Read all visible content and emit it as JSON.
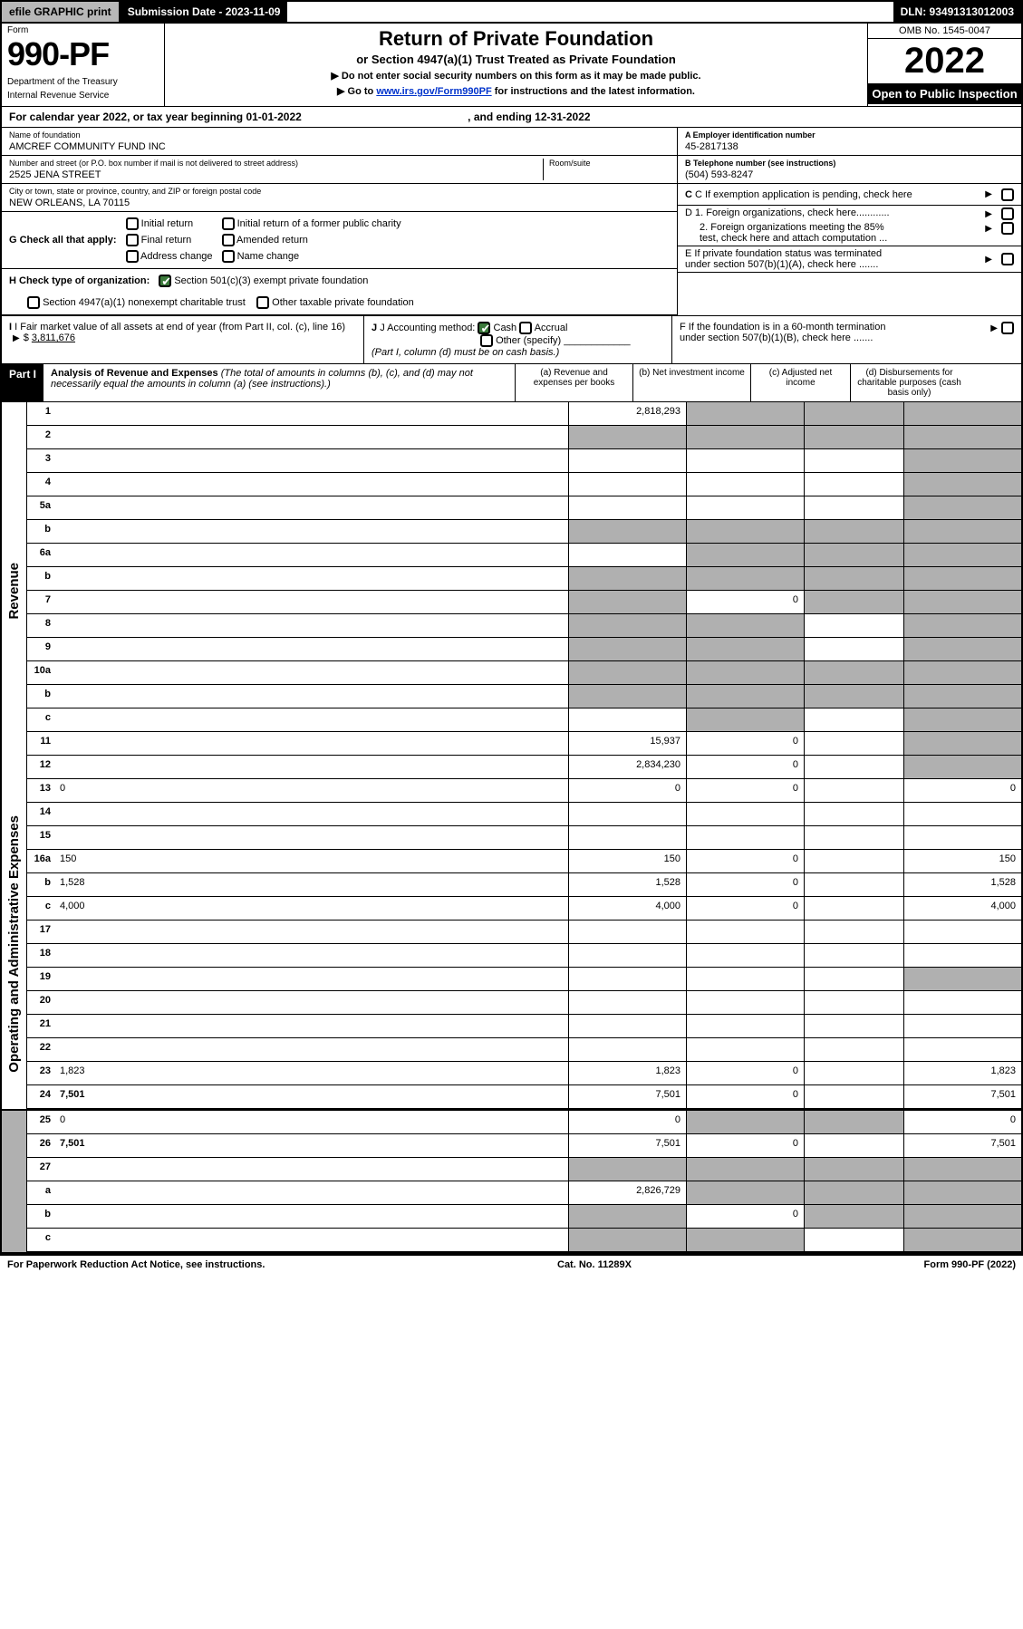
{
  "topbar": {
    "efile_label": "efile GRAPHIC print",
    "submission_label": "Submission Date - 2023-11-09",
    "dln_label": "DLN: 93491313012003"
  },
  "header": {
    "form_label": "Form",
    "form_number": "990-PF",
    "dept1": "Department of the Treasury",
    "dept2": "Internal Revenue Service",
    "title": "Return of Private Foundation",
    "subtitle": "or Section 4947(a)(1) Trust Treated as Private Foundation",
    "note1": "▶ Do not enter social security numbers on this form as it may be made public.",
    "note2": "▶ Go to ",
    "note2_link": "www.irs.gov/Form990PF",
    "note2_suffix": " for instructions and the latest information.",
    "omb": "OMB No. 1545-0047",
    "year": "2022",
    "open_public": "Open to Public Inspection"
  },
  "cal_year": {
    "text": "For calendar year 2022, or tax year beginning 01-01-2022",
    "ending": ", and ending 12-31-2022"
  },
  "id": {
    "name_lbl": "Name of foundation",
    "name_val": "AMCREF COMMUNITY FUND INC",
    "addr_lbl": "Number and street (or P.O. box number if mail is not delivered to street address)",
    "addr_val": "2525 JENA STREET",
    "room_lbl": "Room/suite",
    "city_lbl": "City or town, state or province, country, and ZIP or foreign postal code",
    "city_val": "NEW ORLEANS, LA  70115",
    "ein_lbl": "A Employer identification number",
    "ein_val": "45-2817138",
    "phone_lbl": "B Telephone number (see instructions)",
    "phone_val": "(504) 593-8247",
    "c_lbl": "C If exemption application is pending, check here"
  },
  "g": {
    "label": "G Check all that apply:",
    "o1": "Initial return",
    "o2": "Final return",
    "o3": "Address change",
    "o4": "Initial return of a former public charity",
    "o5": "Amended return",
    "o6": "Name change"
  },
  "h": {
    "label": "H Check type of organization:",
    "o1": "Section 501(c)(3) exempt private foundation",
    "o2": "Section 4947(a)(1) nonexempt charitable trust",
    "o3": "Other taxable private foundation"
  },
  "i": {
    "label": "I Fair market value of all assets at end of year (from Part II, col. (c), line 16)",
    "val": "3,811,676"
  },
  "j": {
    "label": "J Accounting method:",
    "o1": "Cash",
    "o2": "Accrual",
    "o3": "Other (specify)",
    "note": "(Part I, column (d) must be on cash basis.)"
  },
  "d": {
    "d1": "D 1. Foreign organizations, check here............",
    "d2a": "2. Foreign organizations meeting the 85%",
    "d2b": "test, check here and attach computation ..."
  },
  "e": {
    "e1": "E If private foundation status was terminated",
    "e2": "under section 507(b)(1)(A), check here ......."
  },
  "f": {
    "f1": "F If the foundation is in a 60-month termination",
    "f2": "under section 507(b)(1)(B), check here ......."
  },
  "part1": {
    "label": "Part I",
    "title": "Analysis of Revenue and Expenses",
    "title_note": " (The total of amounts in columns (b), (c), and (d) may not necessarily equal the amounts in column (a) (see instructions).)",
    "col_a": "(a) Revenue and expenses per books",
    "col_b": "(b) Net investment income",
    "col_c": "(c) Adjusted net income",
    "col_d": "(d) Disbursements for charitable purposes (cash basis only)"
  },
  "vtabs": {
    "rev": "Revenue",
    "exp": "Operating and Administrative Expenses"
  },
  "rows": [
    {
      "n": "1",
      "d": "",
      "a": "2,818,293",
      "b": "",
      "c": "",
      "shade_b": true,
      "shade_c": true,
      "shade_d": true
    },
    {
      "n": "2",
      "d": "",
      "a": "",
      "b": "",
      "c": "",
      "shade_a": true,
      "shade_b": true,
      "shade_c": true,
      "shade_d": true
    },
    {
      "n": "3",
      "d": "",
      "a": "",
      "b": "",
      "c": "",
      "shade_d": true
    },
    {
      "n": "4",
      "d": "",
      "a": "",
      "b": "",
      "c": "",
      "shade_d": true
    },
    {
      "n": "5a",
      "d": "",
      "a": "",
      "b": "",
      "c": "",
      "shade_d": true
    },
    {
      "n": "b",
      "d": "",
      "a": "",
      "b": "",
      "c": "",
      "shade_a": true,
      "shade_b": true,
      "shade_c": true,
      "shade_d": true
    },
    {
      "n": "6a",
      "d": "",
      "a": "",
      "b": "",
      "c": "",
      "shade_b": true,
      "shade_c": true,
      "shade_d": true
    },
    {
      "n": "b",
      "d": "",
      "a": "",
      "b": "",
      "c": "",
      "shade_a": true,
      "shade_b": true,
      "shade_c": true,
      "shade_d": true
    },
    {
      "n": "7",
      "d": "",
      "a": "",
      "b": "0",
      "c": "",
      "shade_a": true,
      "shade_c": true,
      "shade_d": true
    },
    {
      "n": "8",
      "d": "",
      "a": "",
      "b": "",
      "c": "",
      "shade_a": true,
      "shade_b": true,
      "shade_d": true
    },
    {
      "n": "9",
      "d": "",
      "a": "",
      "b": "",
      "c": "",
      "shade_a": true,
      "shade_b": true,
      "shade_d": true
    },
    {
      "n": "10a",
      "d": "",
      "a": "",
      "b": "",
      "c": "",
      "shade_a": true,
      "shade_b": true,
      "shade_c": true,
      "shade_d": true
    },
    {
      "n": "b",
      "d": "",
      "a": "",
      "b": "",
      "c": "",
      "shade_a": true,
      "shade_b": true,
      "shade_c": true,
      "shade_d": true
    },
    {
      "n": "c",
      "d": "",
      "a": "",
      "b": "",
      "c": "",
      "shade_b": true,
      "shade_d": true
    },
    {
      "n": "11",
      "d": "",
      "a": "15,937",
      "b": "0",
      "c": "",
      "shade_d": true
    },
    {
      "n": "12",
      "d": "",
      "a": "2,834,230",
      "b": "0",
      "c": "",
      "bold": true,
      "shade_d": true
    },
    {
      "n": "13",
      "d": "0",
      "a": "0",
      "b": "0",
      "c": ""
    },
    {
      "n": "14",
      "d": "",
      "a": "",
      "b": "",
      "c": ""
    },
    {
      "n": "15",
      "d": "",
      "a": "",
      "b": "",
      "c": ""
    },
    {
      "n": "16a",
      "d": "150",
      "a": "150",
      "b": "0",
      "c": ""
    },
    {
      "n": "b",
      "d": "1,528",
      "a": "1,528",
      "b": "0",
      "c": ""
    },
    {
      "n": "c",
      "d": "4,000",
      "a": "4,000",
      "b": "0",
      "c": ""
    },
    {
      "n": "17",
      "d": "",
      "a": "",
      "b": "",
      "c": ""
    },
    {
      "n": "18",
      "d": "",
      "a": "",
      "b": "",
      "c": ""
    },
    {
      "n": "19",
      "d": "",
      "a": "",
      "b": "",
      "c": "",
      "shade_d": true
    },
    {
      "n": "20",
      "d": "",
      "a": "",
      "b": "",
      "c": ""
    },
    {
      "n": "21",
      "d": "",
      "a": "",
      "b": "",
      "c": ""
    },
    {
      "n": "22",
      "d": "",
      "a": "",
      "b": "",
      "c": ""
    },
    {
      "n": "23",
      "d": "1,823",
      "a": "1,823",
      "b": "0",
      "c": ""
    },
    {
      "n": "24",
      "d": "7,501",
      "a": "7,501",
      "b": "0",
      "c": "",
      "bold": true
    },
    {
      "n": "25",
      "d": "0",
      "a": "0",
      "b": "",
      "c": "",
      "shade_b": true,
      "shade_c": true
    },
    {
      "n": "26",
      "d": "7,501",
      "a": "7,501",
      "b": "0",
      "c": "",
      "bold": true
    },
    {
      "n": "27",
      "d": "",
      "a": "",
      "b": "",
      "c": "",
      "shade_a": true,
      "shade_b": true,
      "shade_c": true,
      "shade_d": true
    },
    {
      "n": "a",
      "d": "",
      "a": "2,826,729",
      "b": "",
      "c": "",
      "bold": true,
      "shade_b": true,
      "shade_c": true,
      "shade_d": true
    },
    {
      "n": "b",
      "d": "",
      "a": "",
      "b": "0",
      "c": "",
      "bold": true,
      "shade_a": true,
      "shade_c": true,
      "shade_d": true
    },
    {
      "n": "c",
      "d": "",
      "a": "",
      "b": "",
      "c": "",
      "bold": true,
      "shade_a": true,
      "shade_b": true,
      "shade_d": true
    }
  ],
  "footer": {
    "left": "For Paperwork Reduction Act Notice, see instructions.",
    "mid": "Cat. No. 11289X",
    "right": "Form 990-PF (2022)"
  },
  "colors": {
    "shade": "#b0b0b0",
    "link": "#0033cc",
    "checked_green": "#3b7a3b"
  }
}
